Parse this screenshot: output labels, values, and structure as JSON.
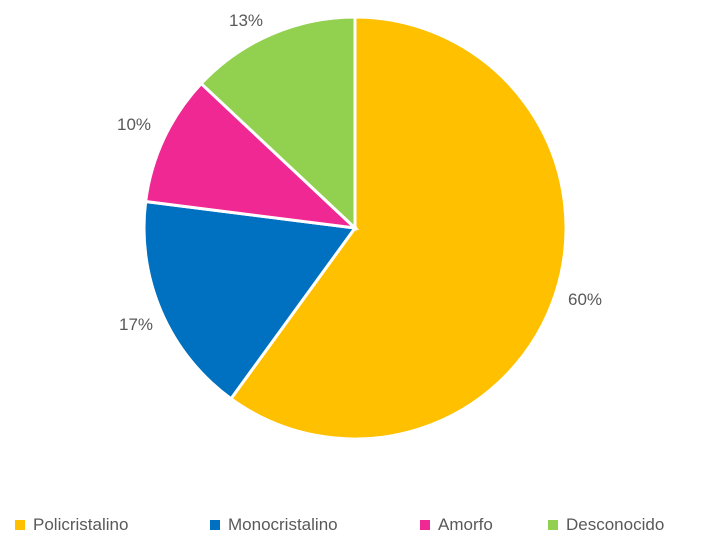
{
  "chart_data": {
    "type": "pie",
    "title": "",
    "series": [
      {
        "categories": [
          "Policristalino",
          "Monocristalino",
          "Amorfo",
          "Desconocido"
        ],
        "values": [
          60,
          17,
          10,
          13
        ],
        "labels": [
          "60%",
          "17%",
          "10%",
          "13%"
        ],
        "colors": [
          "#FFC000",
          "#0070C0",
          "#F02894",
          "#92D050"
        ]
      }
    ],
    "start_angle_deg": 0,
    "direction": "clockwise",
    "legend_position": "bottom"
  },
  "legend": {
    "items": [
      {
        "label": "Policristalino",
        "color": "#FFC000"
      },
      {
        "label": "Monocristalino",
        "color": "#0070C0"
      },
      {
        "label": "Amorfo",
        "color": "#F02894"
      },
      {
        "label": "Desconocido",
        "color": "#92D050"
      }
    ]
  }
}
